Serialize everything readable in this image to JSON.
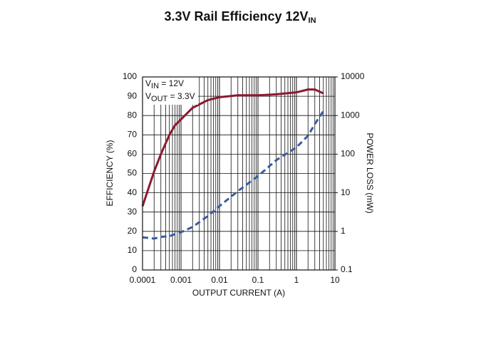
{
  "chart_data": {
    "type": "line",
    "title": "3.3V Rail Efficiency 12V",
    "title_subscript": "IN",
    "x_label": "OUTPUT CURRENT (A)",
    "y_label": "EFFICIENCY (%)",
    "y2_label": "POWER LOSS (mW)",
    "annotations": [
      {
        "text": "V",
        "subscript": "IN",
        "suffix": " = 12V"
      },
      {
        "text": "V",
        "subscript": "OUT",
        "suffix": " = 3.3V"
      }
    ],
    "x": [
      0.0001,
      0.0002,
      0.0003,
      0.0005,
      0.0007,
      0.001,
      0.002,
      0.005,
      0.01,
      0.03,
      0.1,
      0.3,
      1,
      2,
      3,
      5
    ],
    "series": [
      {
        "name": "Efficiency",
        "color": "#8b1a2e",
        "style": "solid",
        "values": [
          33,
          51,
          60,
          70,
          75,
          78,
          84,
          88,
          89.5,
          90.5,
          90.5,
          91,
          92,
          93.5,
          93.5,
          91.5
        ]
      },
      {
        "name": "Power Loss",
        "color": "#3a5ba0",
        "style": "dashed",
        "axis": "y2",
        "values": [
          0.7,
          0.65,
          0.72,
          0.75,
          0.85,
          0.95,
          1.3,
          2.5,
          4.5,
          11,
          27,
          70,
          150,
          300,
          600,
          1300
        ]
      }
    ],
    "xscale": "log",
    "xlim": [
      0.0001,
      10
    ],
    "xticks": [
      0.0001,
      0.001,
      0.01,
      0.1,
      1,
      10
    ],
    "ylim": [
      0,
      100
    ],
    "yticks": [
      0,
      10,
      20,
      30,
      40,
      50,
      60,
      70,
      80,
      90,
      100
    ],
    "y2scale": "log",
    "y2lim": [
      0.1,
      10000
    ],
    "y2ticks": [
      0.1,
      1,
      10,
      100,
      1000,
      10000
    ],
    "grid": true
  }
}
